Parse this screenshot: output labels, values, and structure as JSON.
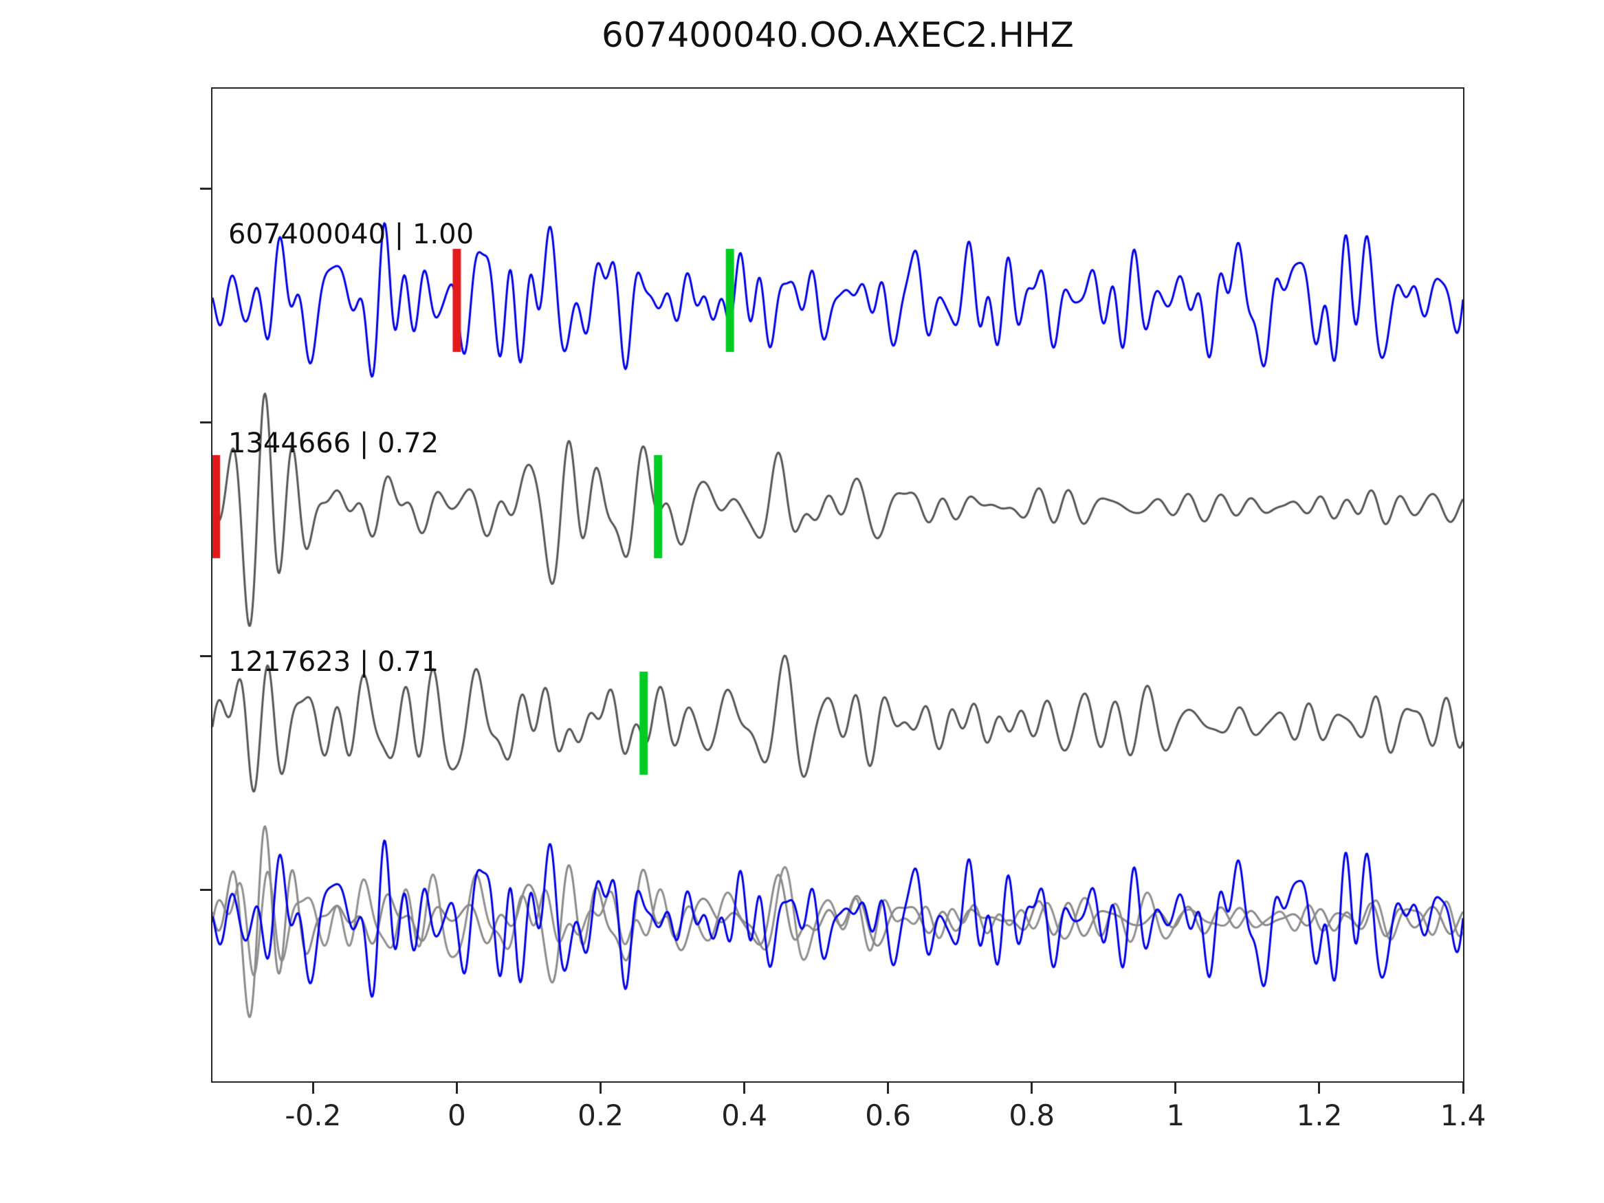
{
  "chart_data": {
    "type": "line",
    "title": "607400040.OO.AXEC2.HHZ",
    "xlim": [
      -0.34,
      1.4
    ],
    "xticks": [
      -0.2,
      0,
      0.2,
      0.4,
      0.6,
      0.8,
      1,
      1.2,
      1.4
    ],
    "xtick_labels": [
      "-0.2",
      "0",
      "0.2",
      "0.4",
      "0.6",
      "0.8",
      "1",
      "1.2",
      "1.4"
    ],
    "xlabel": "",
    "ylabel": "",
    "grid": false,
    "legend": "none",
    "colors": {
      "reference_trace": "#0000e6",
      "matched_trace": "#565656",
      "overlay_gray": "#8a8a8a",
      "reference_pick": "#e31a1c",
      "correlation_pick": "#00cc22"
    },
    "traces": [
      {
        "label": "607400040 | 1.00",
        "event_id": "607400040",
        "correlation": 1.0,
        "color": "#0000e6",
        "picks": [
          {
            "type": "reference-pick",
            "color": "#e31a1c",
            "x": 0.0
          },
          {
            "type": "correlation-pick",
            "color": "#00cc22",
            "x": 0.38
          }
        ]
      },
      {
        "label": "1344666 | 0.72",
        "event_id": "1344666",
        "correlation": 0.72,
        "color": "#565656",
        "picks": [
          {
            "type": "reference-pick",
            "color": "#e31a1c",
            "x": -0.335
          },
          {
            "type": "correlation-pick",
            "color": "#00cc22",
            "x": 0.28
          }
        ]
      },
      {
        "label": "1217623 | 0.71",
        "event_id": "1217623",
        "correlation": 0.71,
        "color": "#565656",
        "picks": [
          {
            "type": "correlation-pick",
            "color": "#00cc22",
            "x": 0.26
          }
        ]
      },
      {
        "label": "",
        "event_id": "overlay",
        "description": "aligned overlay of all traces",
        "color": "#0000e6",
        "picks": []
      }
    ]
  },
  "waveform_synthesis": {
    "samples": 1500,
    "rows": [
      {
        "row": 0,
        "color": "#0000e6",
        "seed": 101,
        "components": 26,
        "fmin": 9,
        "fmax": 42,
        "amp": 110,
        "env": [
          [
            -0.34,
            0.95
          ],
          [
            0.0,
            1.05
          ],
          [
            0.08,
            1.3
          ],
          [
            0.18,
            1.25
          ],
          [
            0.3,
            1.0
          ],
          [
            0.6,
            0.95
          ],
          [
            1.0,
            0.9
          ],
          [
            1.4,
            0.95
          ]
        ]
      },
      {
        "row": 1,
        "color": "#565656",
        "seed": 202,
        "components": 24,
        "fmin": 8,
        "fmax": 32,
        "amp": 95,
        "env": [
          [
            -0.34,
            1.9
          ],
          [
            -0.27,
            2.3
          ],
          [
            -0.18,
            1.0
          ],
          [
            0.0,
            0.95
          ],
          [
            0.12,
            1.2
          ],
          [
            0.3,
            0.95
          ],
          [
            0.55,
            0.85
          ],
          [
            0.75,
            0.5
          ],
          [
            1.0,
            0.42
          ],
          [
            1.4,
            0.38
          ]
        ]
      },
      {
        "row": 2,
        "color": "#565656",
        "seed": 303,
        "components": 24,
        "fmin": 8,
        "fmax": 32,
        "amp": 95,
        "env": [
          [
            -0.34,
            1.6
          ],
          [
            -0.29,
            2.1
          ],
          [
            -0.2,
            1.0
          ],
          [
            0.05,
            1.05
          ],
          [
            0.16,
            1.9
          ],
          [
            0.28,
            1.1
          ],
          [
            0.55,
            1.0
          ],
          [
            0.9,
            0.75
          ],
          [
            1.4,
            0.65
          ]
        ]
      },
      {
        "row": 3,
        "color": "#909090",
        "seed": 303,
        "components": 24,
        "fmin": 8,
        "fmax": 32,
        "amp": 78,
        "env": [
          [
            -0.34,
            1.6
          ],
          [
            -0.29,
            2.1
          ],
          [
            -0.2,
            1.0
          ],
          [
            0.05,
            1.05
          ],
          [
            0.16,
            1.9
          ],
          [
            0.28,
            1.1
          ],
          [
            0.55,
            0.9
          ],
          [
            0.9,
            0.65
          ],
          [
            1.4,
            0.55
          ]
        ]
      },
      {
        "row": 3,
        "color": "#8a8a8a",
        "seed": 202,
        "components": 24,
        "fmin": 8,
        "fmax": 32,
        "amp": 78,
        "env": [
          [
            -0.34,
            1.9
          ],
          [
            -0.27,
            2.3
          ],
          [
            -0.18,
            1.0
          ],
          [
            0.0,
            0.95
          ],
          [
            0.12,
            1.2
          ],
          [
            0.3,
            0.95
          ],
          [
            0.55,
            0.85
          ],
          [
            0.75,
            0.6
          ],
          [
            1.0,
            0.5
          ],
          [
            1.4,
            0.45
          ]
        ]
      },
      {
        "row": 3,
        "color": "#0000e6",
        "seed": 101,
        "components": 26,
        "fmin": 9,
        "fmax": 42,
        "amp": 112,
        "env": [
          [
            -0.34,
            0.95
          ],
          [
            0.0,
            1.05
          ],
          [
            0.08,
            1.3
          ],
          [
            0.18,
            1.25
          ],
          [
            0.3,
            1.0
          ],
          [
            0.6,
            0.95
          ],
          [
            1.0,
            0.9
          ],
          [
            1.4,
            0.95
          ]
        ]
      }
    ]
  },
  "layout_marks": {
    "ytick_positions": [
      274,
      614,
      954,
      1294
    ]
  }
}
